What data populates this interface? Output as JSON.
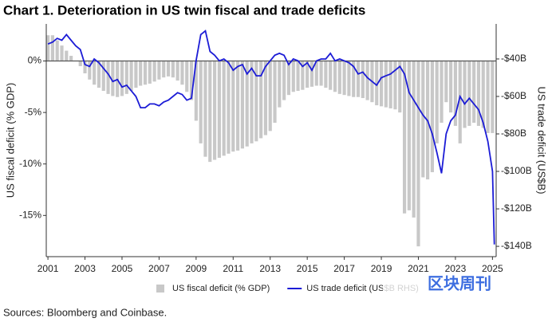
{
  "chart_data": {
    "type": "bar-line",
    "title": "Chart 1. Deterioration in US twin fiscal and trade deficits",
    "ylabel": "US fiscal deficit (% GDP)",
    "y2label": "US trade deficit (US$B)",
    "source": "Sources: Bloomberg and Coinbase.",
    "watermark": "区块周刊",
    "xlim": [
      2000.91,
      2025.2
    ],
    "xticks": [
      2001,
      2003,
      2005,
      2007,
      2009,
      2011,
      2013,
      2015,
      2017,
      2019,
      2021,
      2023,
      2025
    ],
    "ylim": [
      -19,
      3.6
    ],
    "yticks": [
      {
        "value": 0,
        "label": "0%"
      },
      {
        "value": -5,
        "label": "-5%"
      },
      {
        "value": -10,
        "label": "-10%"
      },
      {
        "value": -15,
        "label": "-15%"
      }
    ],
    "y2lim": [
      -145.5,
      -21.3
    ],
    "y2ticks": [
      {
        "value": -40,
        "label": "-$40B"
      },
      {
        "value": -60,
        "label": "-$60B"
      },
      {
        "value": -80,
        "label": "-$80B"
      },
      {
        "value": -100,
        "label": "-$100B"
      },
      {
        "value": -120,
        "label": "-$120B"
      },
      {
        "value": -140,
        "label": "-$140B"
      }
    ],
    "series": [
      {
        "name": "US fiscal deficit (% GDP)",
        "kind": "bar",
        "color": "#c8c8c8",
        "x": [
          2001,
          2001.25,
          2001.5,
          2001.75,
          2002,
          2002.25,
          2002.5,
          2002.75,
          2003,
          2003.25,
          2003.5,
          2003.75,
          2004,
          2004.25,
          2004.5,
          2004.75,
          2005,
          2005.25,
          2005.5,
          2005.75,
          2006,
          2006.25,
          2006.5,
          2006.75,
          2007,
          2007.25,
          2007.5,
          2007.75,
          2008,
          2008.25,
          2008.5,
          2008.75,
          2009,
          2009.25,
          2009.5,
          2009.75,
          2010,
          2010.25,
          2010.5,
          2010.75,
          2011,
          2011.25,
          2011.5,
          2011.75,
          2012,
          2012.25,
          2012.5,
          2012.75,
          2013,
          2013.25,
          2013.5,
          2013.75,
          2014,
          2014.25,
          2014.5,
          2014.75,
          2015,
          2015.25,
          2015.5,
          2015.75,
          2016,
          2016.25,
          2016.5,
          2016.75,
          2017,
          2017.25,
          2017.5,
          2017.75,
          2018,
          2018.25,
          2018.5,
          2018.75,
          2019,
          2019.25,
          2019.5,
          2019.75,
          2020,
          2020.25,
          2020.5,
          2020.75,
          2021,
          2021.25,
          2021.5,
          2021.75,
          2022,
          2022.25,
          2022.5,
          2022.75,
          2023,
          2023.25,
          2023.5,
          2023.75,
          2024,
          2024.25,
          2024.5,
          2024.75,
          2025
        ],
        "values": [
          2.5,
          2.5,
          2.0,
          1.5,
          1.0,
          0.5,
          0,
          -0.5,
          -1.2,
          -1.8,
          -2.3,
          -2.6,
          -2.9,
          -3.2,
          -3.4,
          -3.5,
          -3.4,
          -3.2,
          -2.9,
          -2.6,
          -2.4,
          -2.3,
          -2.2,
          -2.0,
          -1.8,
          -1.6,
          -1.5,
          -1.6,
          -1.9,
          -2.3,
          -3.0,
          -3.8,
          -5.8,
          -8.0,
          -9.3,
          -9.8,
          -9.6,
          -9.4,
          -9.2,
          -9.0,
          -8.8,
          -8.7,
          -8.5,
          -8.3,
          -8.0,
          -7.8,
          -7.5,
          -7.2,
          -6.8,
          -6.0,
          -4.5,
          -3.8,
          -3.3,
          -3.0,
          -2.9,
          -2.8,
          -2.6,
          -2.5,
          -2.4,
          -2.4,
          -2.6,
          -2.8,
          -3.0,
          -3.2,
          -3.3,
          -3.4,
          -3.5,
          -3.5,
          -3.6,
          -3.8,
          -4.0,
          -4.3,
          -4.4,
          -4.5,
          -4.6,
          -4.7,
          -5.0,
          -14.8,
          -14.5,
          -15.2,
          -18.0,
          -11.3,
          -11.5,
          -10.8,
          -8.0,
          -6.0,
          -4.0,
          -5.0,
          -6.3,
          -8.0,
          -6.5,
          -6.3,
          -6.0,
          -6.3,
          -6.5,
          -7.0,
          -7.0
        ]
      },
      {
        "name": "US trade deficit (US$B RHS)",
        "kind": "line",
        "axis": "y2",
        "color": "#1c1cd6",
        "x": [
          2001,
          2001.25,
          2001.5,
          2001.75,
          2002,
          2002.25,
          2002.5,
          2002.75,
          2003,
          2003.25,
          2003.5,
          2003.75,
          2004,
          2004.25,
          2004.5,
          2004.75,
          2005,
          2005.25,
          2005.5,
          2005.75,
          2006,
          2006.25,
          2006.5,
          2006.75,
          2007,
          2007.25,
          2007.5,
          2007.75,
          2008,
          2008.25,
          2008.5,
          2008.75,
          2009,
          2009.25,
          2009.5,
          2009.75,
          2010,
          2010.25,
          2010.5,
          2010.75,
          2011,
          2011.25,
          2011.5,
          2011.75,
          2012,
          2012.25,
          2012.5,
          2012.75,
          2013,
          2013.25,
          2013.5,
          2013.75,
          2014,
          2014.25,
          2014.5,
          2014.75,
          2015,
          2015.25,
          2015.5,
          2015.75,
          2016,
          2016.25,
          2016.5,
          2016.75,
          2017,
          2017.25,
          2017.5,
          2017.75,
          2018,
          2018.25,
          2018.5,
          2018.75,
          2019,
          2019.25,
          2019.5,
          2019.75,
          2020,
          2020.25,
          2020.5,
          2020.75,
          2021,
          2021.25,
          2021.5,
          2021.75,
          2022,
          2022.25,
          2022.5,
          2022.75,
          2023,
          2023.25,
          2023.5,
          2023.75,
          2024,
          2024.25,
          2024.5,
          2024.75,
          2025,
          2025.1
        ],
        "values": [
          -32,
          -31,
          -29,
          -30,
          -27,
          -30,
          -33,
          -35,
          -43,
          -44,
          -40,
          -42,
          -45,
          -48,
          -52,
          -51,
          -55,
          -54,
          -57,
          -60,
          -66,
          -66,
          -64,
          -64,
          -65,
          -63,
          -62,
          -60,
          -58,
          -59,
          -62,
          -61,
          -41,
          -27,
          -25,
          -36,
          -38,
          -41,
          -40,
          -42,
          -46,
          -44,
          -43,
          -48,
          -45,
          -49,
          -49,
          -44,
          -41,
          -38,
          -37,
          -38,
          -43,
          -40,
          -41,
          -44,
          -42,
          -46,
          -41,
          -40,
          -40,
          -37,
          -41,
          -40,
          -41,
          -42,
          -44,
          -48,
          -47,
          -50,
          -52,
          -54,
          -50,
          -49,
          -48,
          -46,
          -44,
          -48,
          -58,
          -62,
          -66,
          -70,
          -73,
          -80,
          -90,
          -101,
          -80,
          -73,
          -70,
          -60,
          -64,
          -61,
          -64,
          -67,
          -74,
          -84,
          -100,
          -139
        ]
      }
    ]
  }
}
